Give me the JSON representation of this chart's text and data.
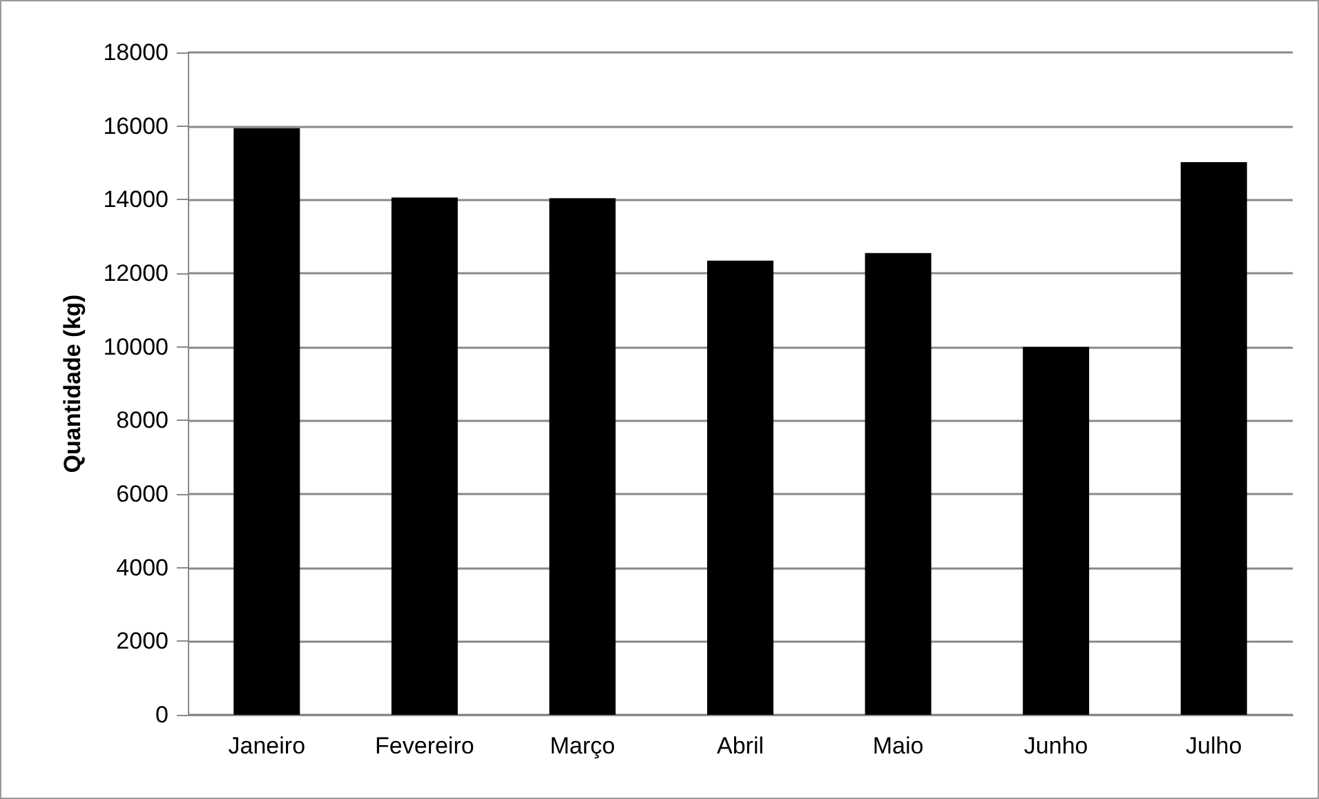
{
  "chart_data": {
    "type": "bar",
    "ylabel": "Quantidade (kg)",
    "categories": [
      "Janeiro",
      "Fevereiro",
      "Março",
      "Abril",
      "Maio",
      "Junho",
      "Julho"
    ],
    "values": [
      15940,
      14060,
      14040,
      12340,
      12550,
      10000,
      15020
    ],
    "color": "#000000",
    "ylim": [
      0,
      18000
    ],
    "yticks": [
      0,
      2000,
      4000,
      6000,
      8000,
      10000,
      12000,
      14000,
      16000,
      18000
    ],
    "grid": "y"
  }
}
